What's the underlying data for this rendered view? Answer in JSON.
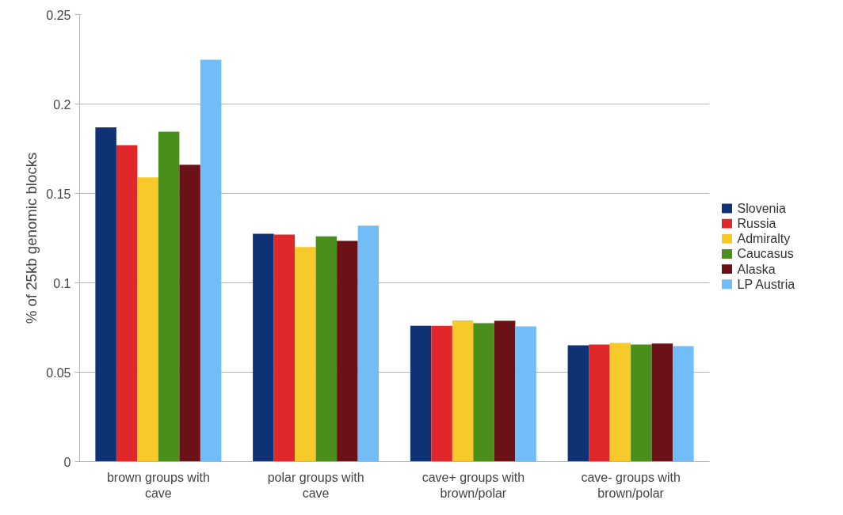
{
  "chart_data": {
    "type": "bar",
    "ylabel": "% of 25kb genomic blocks",
    "categories": [
      "brown groups with cave",
      "polar groups with cave",
      "cave+ groups with brown/polar",
      "cave- groups with brown/polar"
    ],
    "series": [
      {
        "name": "Slovenia",
        "color": "#0e3273",
        "values": [
          0.187,
          0.1274,
          0.076,
          0.065
        ]
      },
      {
        "name": "Russia",
        "color": "#e0282a",
        "values": [
          0.177,
          0.127,
          0.076,
          0.0655
        ]
      },
      {
        "name": "Admiralty",
        "color": "#f8c92a",
        "values": [
          0.159,
          0.12,
          0.079,
          0.0664
        ]
      },
      {
        "name": "Caucasus",
        "color": "#4a8e1c",
        "values": [
          0.1845,
          0.126,
          0.0774,
          0.0655
        ]
      },
      {
        "name": "Alaska",
        "color": "#6b1219",
        "values": [
          0.166,
          0.1235,
          0.0788,
          0.066
        ]
      },
      {
        "name": "LP Austria",
        "color": "#72bdf7",
        "values": [
          0.2248,
          0.132,
          0.0757,
          0.0646
        ]
      }
    ],
    "ylim": [
      0,
      0.25
    ],
    "yticks": [
      0,
      0.05,
      0.1,
      0.15,
      0.2,
      0.25
    ],
    "grid": "y",
    "legend": "right"
  }
}
